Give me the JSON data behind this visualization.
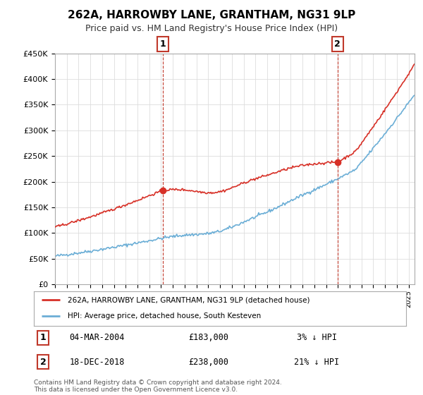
{
  "title": "262A, HARROWBY LANE, GRANTHAM, NG31 9LP",
  "subtitle": "Price paid vs. HM Land Registry's House Price Index (HPI)",
  "legend_line1": "262A, HARROWBY LANE, GRANTHAM, NG31 9LP (detached house)",
  "legend_line2": "HPI: Average price, detached house, South Kesteven",
  "annotation1_label": "1",
  "annotation1_date": "04-MAR-2004",
  "annotation1_price": "£183,000",
  "annotation1_hpi": "3% ↓ HPI",
  "annotation2_label": "2",
  "annotation2_date": "18-DEC-2018",
  "annotation2_price": "£238,000",
  "annotation2_hpi": "21% ↓ HPI",
  "footer": "Contains HM Land Registry data © Crown copyright and database right 2024.\nThis data is licensed under the Open Government Licence v3.0.",
  "sale1_year": 2004.17,
  "sale1_value": 183000,
  "sale2_year": 2018.96,
  "sale2_value": 238000,
  "hpi_color": "#6baed6",
  "property_color": "#d73027",
  "annotation_box_color": "#c0392b",
  "background_color": "#ffffff",
  "grid_color": "#dddddd",
  "ylim": [
    0,
    450000
  ],
  "xlim_start": 1995,
  "xlim_end": 2025.5
}
